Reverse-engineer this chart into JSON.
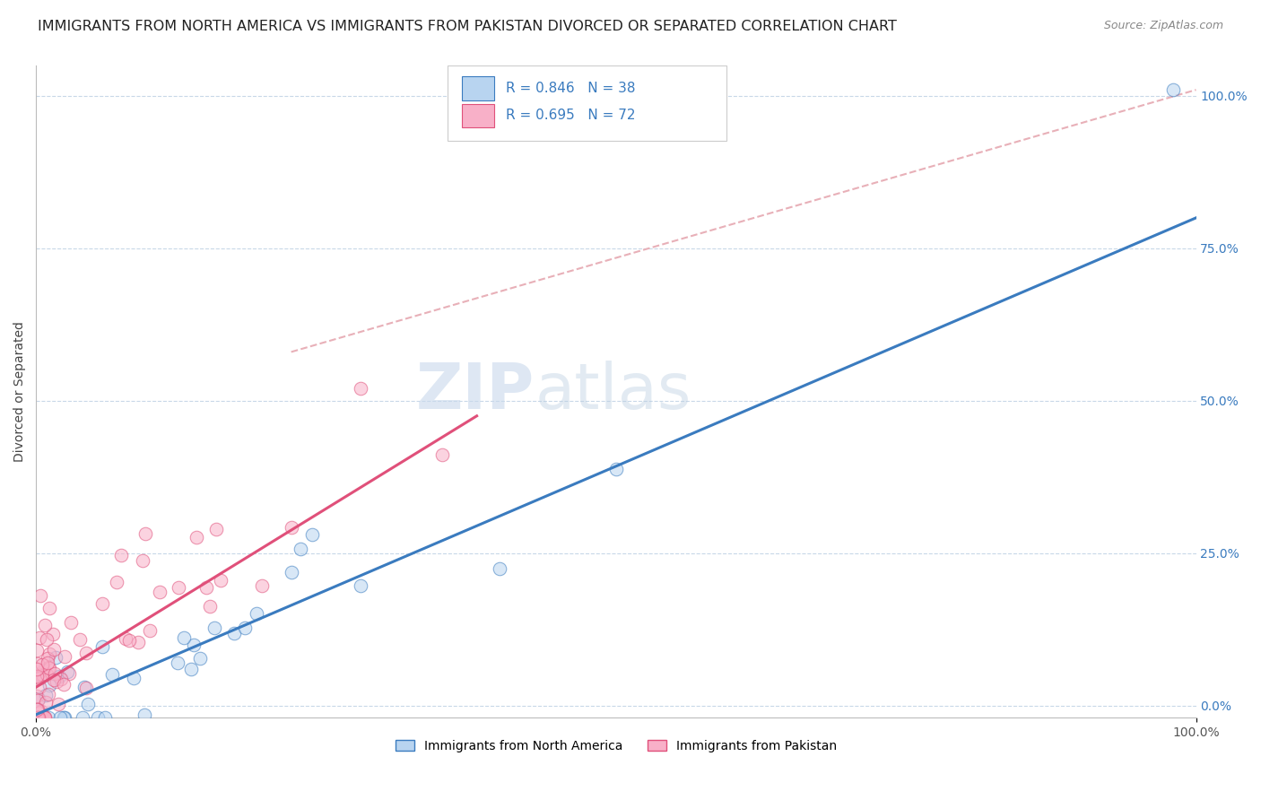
{
  "title": "IMMIGRANTS FROM NORTH AMERICA VS IMMIGRANTS FROM PAKISTAN DIVORCED OR SEPARATED CORRELATION CHART",
  "source": "Source: ZipAtlas.com",
  "ylabel": "Divorced or Separated",
  "watermark_zip": "ZIP",
  "watermark_atlas": "atlas",
  "legend_entries": [
    {
      "label": "Immigrants from North America",
      "R": 0.846,
      "N": 38,
      "color": "#b8d4f0",
      "line_color": "#3a7bbf"
    },
    {
      "label": "Immigrants from Pakistan",
      "R": 0.695,
      "N": 72,
      "color": "#f8b0c8",
      "line_color": "#e0507a"
    }
  ],
  "blue_scatter_color": "#b8d4f0",
  "blue_edge_color": "#3a7bbf",
  "pink_scatter_color": "#f8b0c8",
  "pink_edge_color": "#e0507a",
  "blue_line_color": "#3a7bbf",
  "pink_line_color": "#e0507a",
  "ref_line_color": "#e8b0b8",
  "grid_color": "#c8d8e8",
  "background_color": "#ffffff",
  "title_fontsize": 11.5,
  "axis_label_fontsize": 10,
  "tick_fontsize": 10,
  "xlim": [
    0,
    1.0
  ],
  "ylim": [
    -0.02,
    1.05
  ],
  "right_yticks": [
    0.0,
    0.25,
    0.5,
    0.75,
    1.0
  ],
  "right_ytick_labels": [
    "0.0%",
    "25.0%",
    "50.0%",
    "75.0%",
    "100.0%"
  ],
  "xtick_positions": [
    0.0,
    1.0
  ],
  "xtick_labels": [
    "0.0%",
    "100.0%"
  ],
  "blue_line_x0": 0.0,
  "blue_line_y0": -0.015,
  "blue_line_x1": 1.0,
  "blue_line_y1": 0.8,
  "pink_line_x0": 0.0,
  "pink_line_y0": 0.03,
  "pink_line_x1": 0.38,
  "pink_line_y1": 0.475,
  "ref_line_x0": 0.22,
  "ref_line_y0": 0.58,
  "ref_line_x1": 1.0,
  "ref_line_y1": 1.01
}
